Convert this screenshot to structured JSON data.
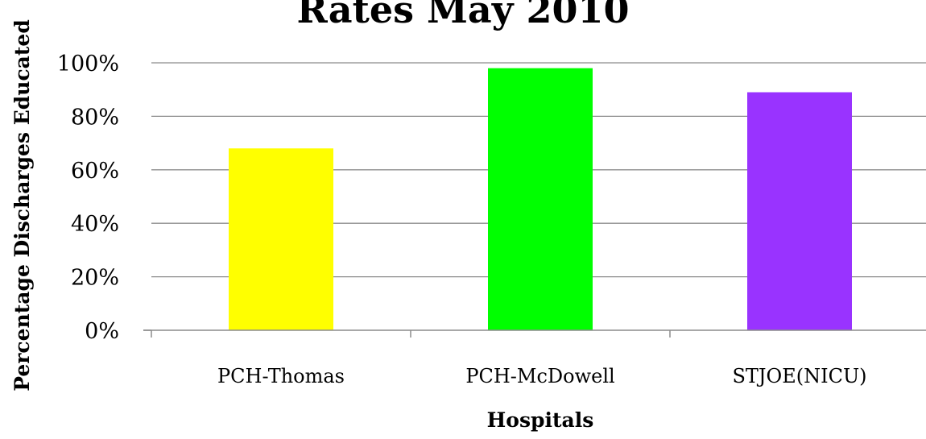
{
  "chart_data": {
    "type": "bar",
    "title": "Rates May 2010",
    "xlabel": "Hospitals",
    "ylabel": "Percentage Discharges Educated",
    "categories": [
      "PCH-Thomas",
      "PCH-McDowell",
      "STJOE(NICU)"
    ],
    "values": [
      68,
      98,
      89
    ],
    "colors": [
      "#ffff00",
      "#00ff00",
      "#9933ff"
    ],
    "yticks": [
      "0%",
      "20%",
      "40%",
      "60%",
      "80%",
      "100%"
    ],
    "ylim": [
      0,
      100
    ],
    "grid": true,
    "legend": "none"
  }
}
